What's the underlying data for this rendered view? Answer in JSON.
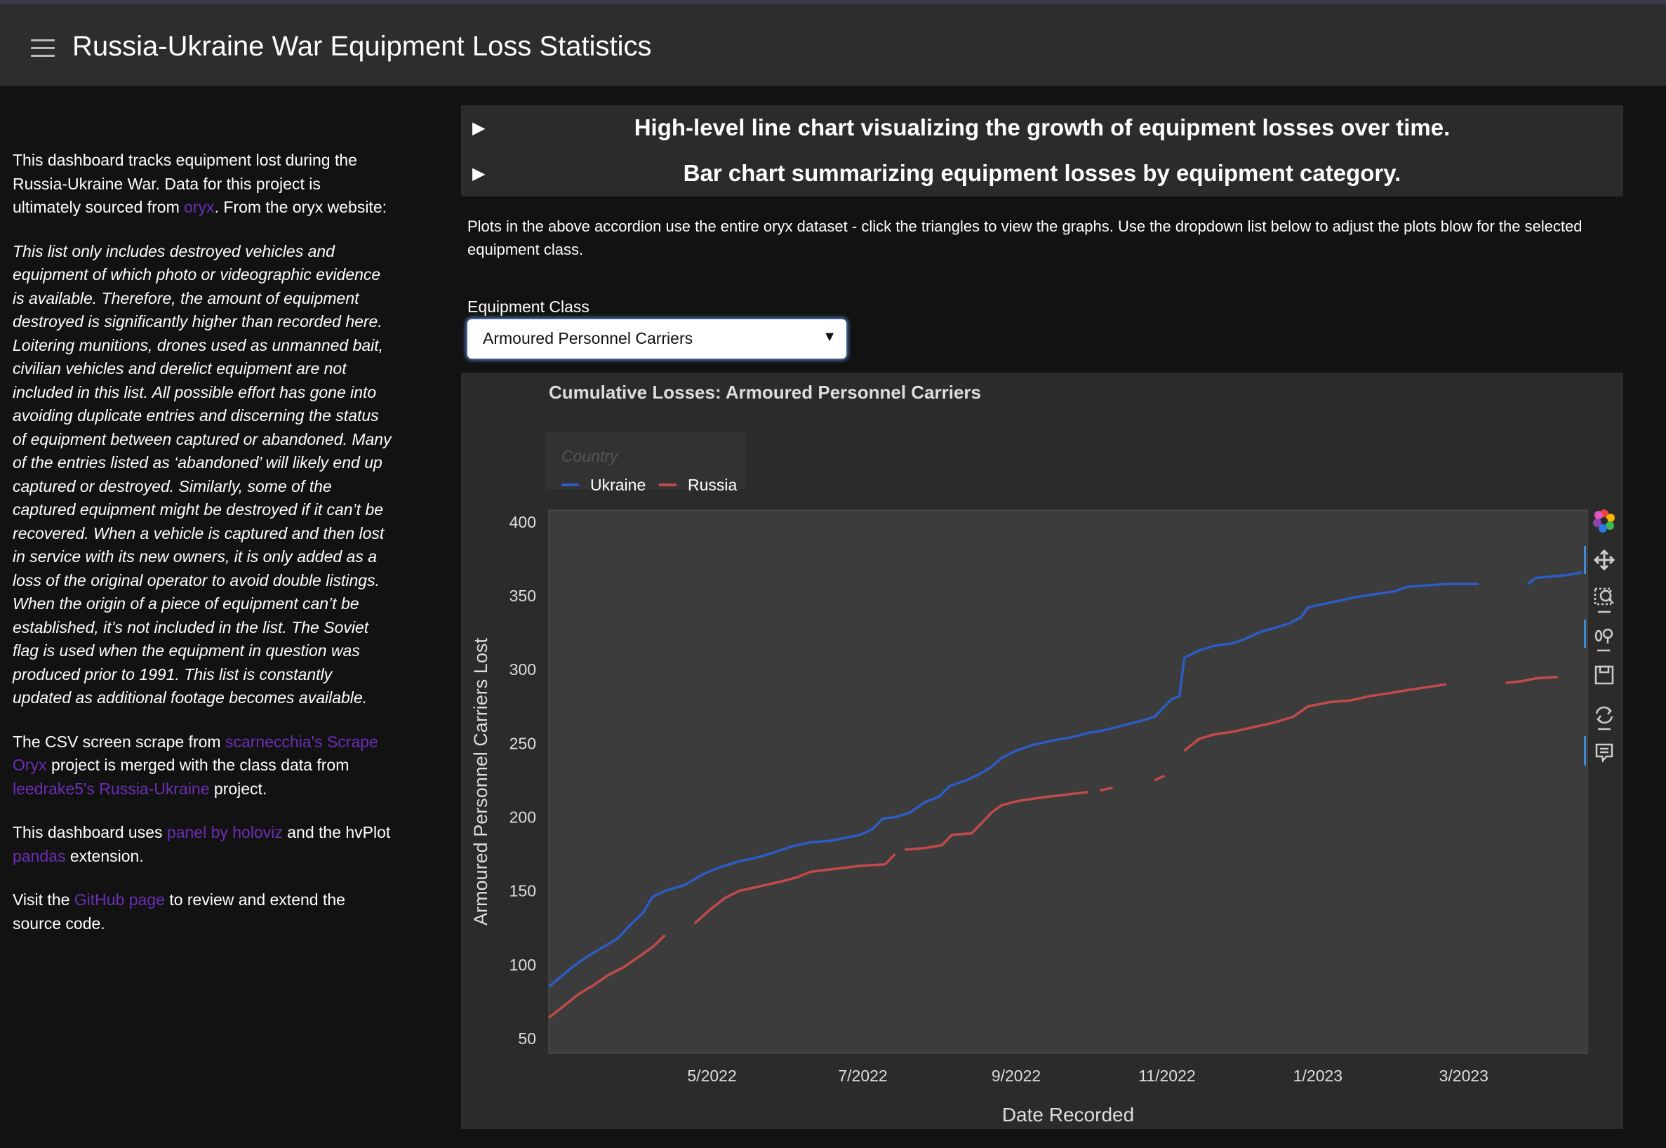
{
  "app": {
    "title": "Russia-Ukraine War Equipment Loss Statistics"
  },
  "sidebar": {
    "p1_a": "This dashboard tracks equipment lost during the Russia-Ukraine War. Data for this project is ultimately sourced from ",
    "p1_link": "oryx",
    "p1_b": ". From the oryx website:",
    "quote": "This list only includes destroyed vehicles and equipment of which photo or videographic evidence is available. Therefore, the amount of equipment destroyed is significantly higher than recorded here. Loitering munitions, drones used as unmanned bait, civilian vehicles and derelict equipment are not included in this list. All possible effort has gone into avoiding duplicate entries and discerning the status of equipment between captured or abandoned. Many of the entries listed as ‘abandoned’ will likely end up captured or destroyed. Similarly, some of the captured equipment might be destroyed if it can’t be recovered. When a vehicle is captured and then lost in service with its new owners, it is only added as a loss of the original operator to avoid double listings. When the origin of a piece of equipment can’t be established, it’s not included in the list. The Soviet flag is used when the equipment in question was produced prior to 1991. This list is constantly updated as additional footage becomes available.",
    "p2_a": "The CSV screen scrape from ",
    "p2_link1": "scarnecchia's Scrape Oryx",
    "p2_b": " project is merged with the class data from ",
    "p2_link2": "leedrake5's Russia-Ukraine",
    "p2_c": " project.",
    "p3_a": "This dashboard uses ",
    "p3_link1": "panel by holoviz",
    "p3_b": " and the hvPlot ",
    "p3_link2": "pandas",
    "p3_c": " extension.",
    "p4_a": "Visit the ",
    "p4_link": "GitHub page",
    "p4_b": " to review and extend the source code."
  },
  "accordion": {
    "items": [
      {
        "arrow": "▶",
        "label": "High-level line chart visualizing the growth of equipment losses over time."
      },
      {
        "arrow": "▶",
        "label": "Bar chart summarizing equipment losses by equipment category."
      }
    ]
  },
  "intro": {
    "text": "Plots in the above accordion use the entire oryx dataset - click the triangles to view the graphs. Use the dropdown list below to adjust the plots blow for the selected equipment class."
  },
  "select": {
    "label": "Equipment Class",
    "value": "Armoured Personnel Carriers",
    "caret": "▼"
  },
  "colors": {
    "ukraine": "#2c5cc5",
    "russia": "#c24a4a",
    "link": "#6b2fb5",
    "plot_bg": "#3c3c3c",
    "panel_bg": "#2b2b2b"
  },
  "toolbar": {
    "tools": [
      "bokeh-logo-icon",
      "pan-icon",
      "box-zoom-icon",
      "wheel-zoom-icon",
      "save-icon",
      "reset-icon",
      "hover-icon"
    ]
  },
  "chart_data": {
    "type": "line",
    "title": "Cumulative Losses: Armoured Personnel Carriers",
    "xlabel": "Date Recorded",
    "ylabel": "Armoured Personnel Carriers Lost",
    "legend_title": "Country",
    "legend_position": "top-left",
    "grid": false,
    "x_type": "date",
    "xlim": [
      "2022-02-24",
      "2023-04-20"
    ],
    "ylim": [
      40,
      408
    ],
    "xticks": [
      {
        "date": "2022-05-01",
        "label": "5/2022"
      },
      {
        "date": "2022-07-01",
        "label": "7/2022"
      },
      {
        "date": "2022-09-01",
        "label": "9/2022"
      },
      {
        "date": "2022-11-01",
        "label": "11/2022"
      },
      {
        "date": "2023-01-01",
        "label": "1/2023"
      },
      {
        "date": "2023-03-01",
        "label": "3/2023"
      }
    ],
    "yticks": [
      50,
      100,
      150,
      200,
      250,
      300,
      350,
      400
    ],
    "series": [
      {
        "name": "Ukraine",
        "color": "#2c5cc5",
        "segments": [
          [
            [
              "2022-02-24",
              85
            ],
            [
              "2022-03-01",
              92
            ],
            [
              "2022-03-06",
              99
            ],
            [
              "2022-03-12",
              106
            ],
            [
              "2022-03-18",
              112
            ],
            [
              "2022-03-24",
              118
            ],
            [
              "2022-03-29",
              127
            ],
            [
              "2022-04-03",
              135
            ],
            [
              "2022-04-07",
              146
            ],
            [
              "2022-04-12",
              150
            ],
            [
              "2022-04-20",
              154
            ],
            [
              "2022-04-26",
              160
            ],
            [
              "2022-05-01",
              164
            ],
            [
              "2022-05-06",
              167
            ],
            [
              "2022-05-12",
              170
            ],
            [
              "2022-05-20",
              173
            ],
            [
              "2022-05-26",
              176
            ],
            [
              "2022-06-02",
              180
            ],
            [
              "2022-06-10",
              183
            ],
            [
              "2022-06-18",
              184
            ],
            [
              "2022-06-24",
              186
            ],
            [
              "2022-06-30",
              188
            ],
            [
              "2022-07-05",
              192
            ],
            [
              "2022-07-09",
              199
            ],
            [
              "2022-07-14",
              200
            ],
            [
              "2022-07-20",
              203
            ],
            [
              "2022-07-26",
              210
            ],
            [
              "2022-08-01",
              214
            ],
            [
              "2022-08-05",
              221
            ],
            [
              "2022-08-12",
              225
            ],
            [
              "2022-08-17",
              229
            ],
            [
              "2022-08-22",
              234
            ],
            [
              "2022-08-26",
              240
            ],
            [
              "2022-09-01",
              245
            ],
            [
              "2022-09-08",
              249
            ],
            [
              "2022-09-16",
              252
            ],
            [
              "2022-09-23",
              254
            ],
            [
              "2022-09-30",
              257
            ],
            [
              "2022-10-07",
              259
            ],
            [
              "2022-10-14",
              262
            ],
            [
              "2022-10-21",
              265
            ],
            [
              "2022-10-27",
              268
            ],
            [
              "2022-10-31",
              275
            ],
            [
              "2022-11-03",
              280
            ],
            [
              "2022-11-06",
              282
            ],
            [
              "2022-11-08",
              308
            ],
            [
              "2022-11-14",
              313
            ],
            [
              "2022-11-20",
              316
            ],
            [
              "2022-11-28",
              318
            ],
            [
              "2022-12-03",
              321
            ],
            [
              "2022-12-08",
              325
            ],
            [
              "2022-12-14",
              328
            ],
            [
              "2022-12-20",
              331
            ],
            [
              "2022-12-25",
              335
            ],
            [
              "2022-12-28",
              342
            ],
            [
              "2023-01-02",
              344
            ],
            [
              "2023-01-08",
              346
            ],
            [
              "2023-01-16",
              349
            ],
            [
              "2023-01-24",
              351
            ],
            [
              "2023-02-01",
              353
            ],
            [
              "2023-02-06",
              356
            ],
            [
              "2023-02-14",
              357
            ],
            [
              "2023-02-22",
              358
            ],
            [
              "2023-03-01",
              358
            ],
            [
              "2023-03-07",
              358
            ]
          ],
          [
            [
              "2023-03-27",
              358
            ],
            [
              "2023-03-30",
              362
            ],
            [
              "2023-04-05",
              363
            ],
            [
              "2023-04-12",
              364
            ],
            [
              "2023-04-18",
              366
            ]
          ]
        ]
      },
      {
        "name": "Russia",
        "color": "#c24a4a",
        "segments": [
          [
            [
              "2022-02-24",
              64
            ],
            [
              "2022-03-02",
              72
            ],
            [
              "2022-03-08",
              80
            ],
            [
              "2022-03-14",
              86
            ],
            [
              "2022-03-20",
              93
            ],
            [
              "2022-03-26",
              98
            ],
            [
              "2022-04-01",
              105
            ],
            [
              "2022-04-07",
              112
            ],
            [
              "2022-04-12",
              120
            ]
          ],
          [
            [
              "2022-04-24",
              128
            ],
            [
              "2022-04-30",
              137
            ],
            [
              "2022-05-06",
              145
            ],
            [
              "2022-05-12",
              150
            ],
            [
              "2022-05-20",
              153
            ],
            [
              "2022-05-28",
              156
            ],
            [
              "2022-06-04",
              159
            ],
            [
              "2022-06-10",
              163
            ],
            [
              "2022-06-20",
              165
            ],
            [
              "2022-06-30",
              167
            ],
            [
              "2022-07-10",
              168
            ],
            [
              "2022-07-14",
              175
            ]
          ],
          [
            [
              "2022-07-18",
              178
            ],
            [
              "2022-07-26",
              179
            ],
            [
              "2022-08-02",
              181
            ],
            [
              "2022-08-06",
              188
            ],
            [
              "2022-08-14",
              189
            ],
            [
              "2022-08-18",
              196
            ],
            [
              "2022-08-22",
              203
            ],
            [
              "2022-08-26",
              208
            ],
            [
              "2022-09-02",
              211
            ],
            [
              "2022-09-10",
              213
            ],
            [
              "2022-09-20",
              215
            ],
            [
              "2022-09-30",
              217
            ]
          ],
          [
            [
              "2022-10-05",
              218
            ],
            [
              "2022-10-10",
              220
            ]
          ],
          [
            [
              "2022-10-27",
              225
            ],
            [
              "2022-10-31",
              228
            ]
          ],
          [
            [
              "2022-11-08",
              245
            ],
            [
              "2022-11-14",
              253
            ],
            [
              "2022-11-20",
              256
            ],
            [
              "2022-11-28",
              258
            ],
            [
              "2022-12-06",
              261
            ],
            [
              "2022-12-14",
              264
            ],
            [
              "2022-12-22",
              268
            ],
            [
              "2022-12-28",
              275
            ],
            [
              "2023-01-06",
              278
            ],
            [
              "2023-01-14",
              279
            ],
            [
              "2023-01-22",
              282
            ],
            [
              "2023-01-30",
              284
            ],
            [
              "2023-02-06",
              286
            ],
            [
              "2023-02-14",
              288
            ],
            [
              "2023-02-22",
              290
            ]
          ],
          [
            [
              "2023-03-18",
              291
            ],
            [
              "2023-03-24",
              292
            ],
            [
              "2023-03-30",
              294
            ],
            [
              "2023-04-08",
              295
            ]
          ]
        ]
      }
    ]
  }
}
